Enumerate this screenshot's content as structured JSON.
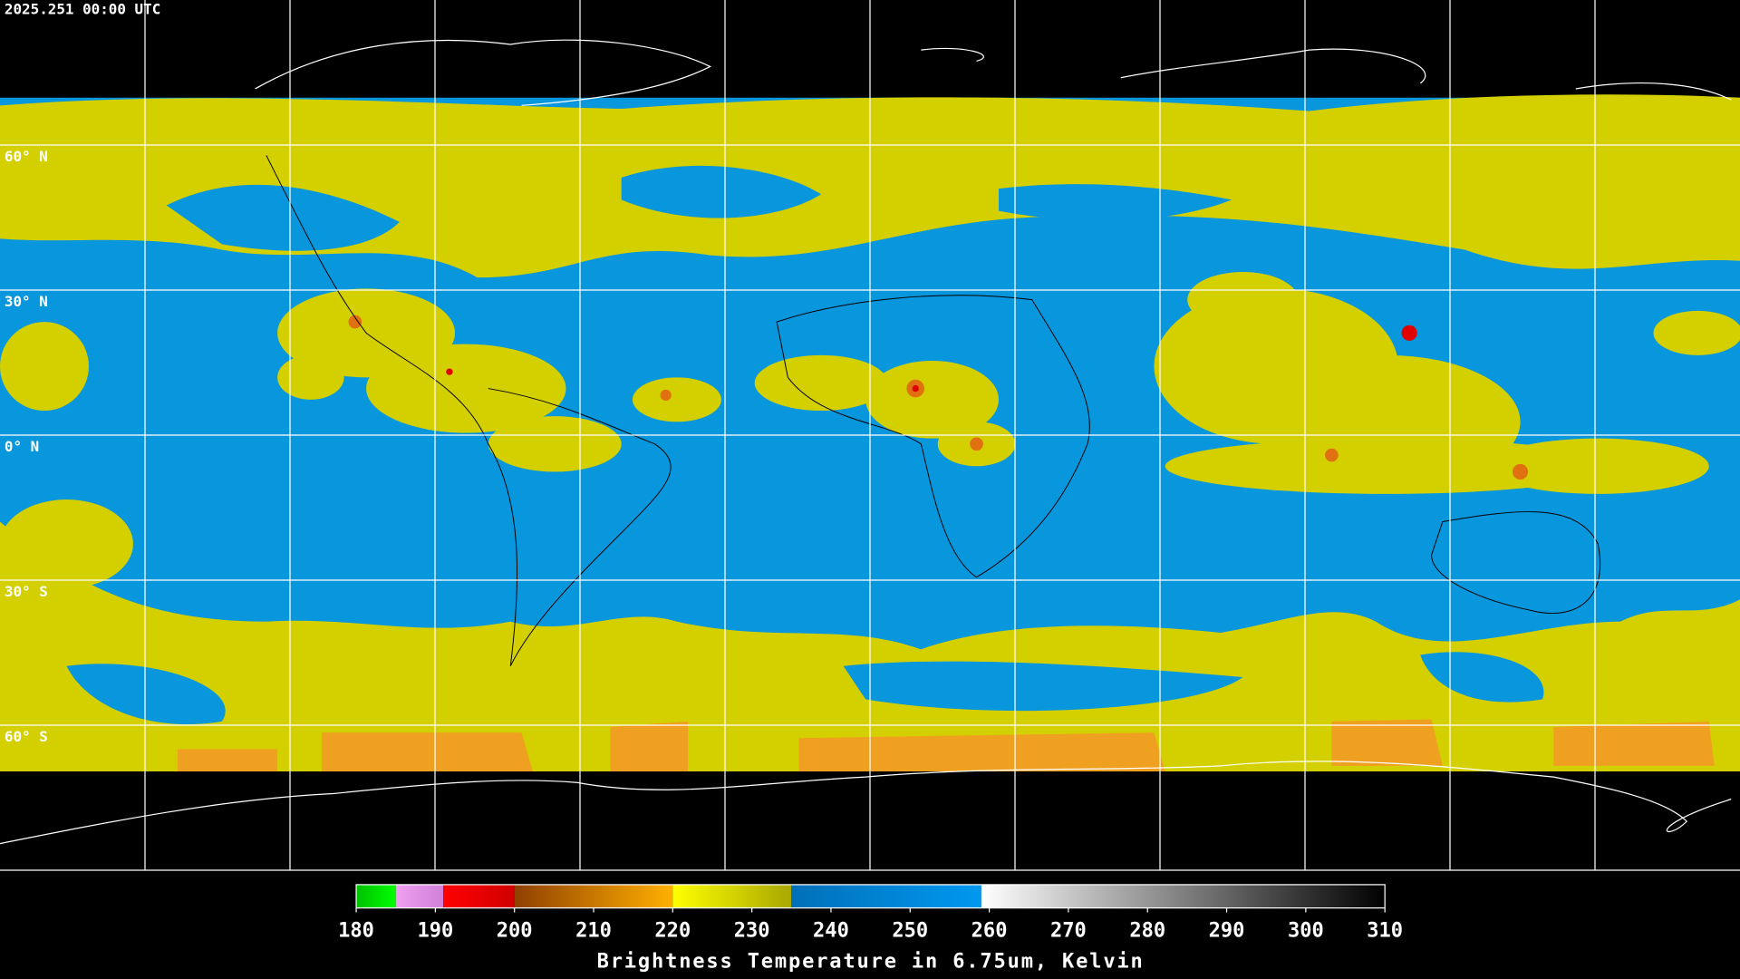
{
  "header": {
    "title": "2025.251 00:00 UTC"
  },
  "latitude_labels": [
    "60° N",
    "30° N",
    "0° N",
    "30° S",
    "60° S"
  ],
  "colorbar": {
    "label": "Brightness Temperature in 6.75um, Kelvin",
    "range": [
      180,
      310
    ],
    "ticks": [
      180,
      190,
      200,
      210,
      220,
      230,
      240,
      250,
      260,
      270,
      280,
      290,
      300,
      310
    ],
    "segments": [
      {
        "start": 180,
        "end": 185,
        "colors": [
          "#00c000",
          "#00ff00"
        ]
      },
      {
        "start": 185,
        "end": 191,
        "colors": [
          "#f0a0f0",
          "#d080d8"
        ]
      },
      {
        "start": 191,
        "end": 200,
        "colors": [
          "#ff0000",
          "#d00000"
        ]
      },
      {
        "start": 200,
        "end": 220,
        "colors": [
          "#904000",
          "#ffb000"
        ]
      },
      {
        "start": 220,
        "end": 235,
        "colors": [
          "#ffff00",
          "#a8a800"
        ]
      },
      {
        "start": 235,
        "end": 259,
        "colors": [
          "#0070b8",
          "#0098f0"
        ]
      },
      {
        "start": 259,
        "end": 310,
        "colors": [
          "#ffffff",
          "#000000"
        ]
      }
    ]
  }
}
